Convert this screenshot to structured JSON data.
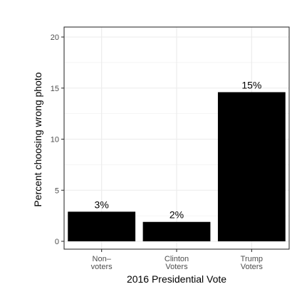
{
  "chart_data": {
    "type": "bar",
    "categories": [
      "Non–\nvoters",
      "Clinton\nVoters",
      "Trump\nVoters"
    ],
    "values": [
      2.9,
      1.9,
      14.6
    ],
    "data_labels": [
      "3%",
      "2%",
      "15%"
    ],
    "title": "",
    "xlabel": "2016 Presidential Vote",
    "ylabel": "Percent choosing wrong photo",
    "ylim": [
      0,
      20
    ],
    "yticks": [
      0,
      5,
      10,
      15,
      20
    ],
    "grid": true,
    "legend": "none",
    "bar_color": "#000000",
    "background": "#ffffff",
    "panel_border_color": "#333333",
    "grid_color": "#ebebeb"
  }
}
